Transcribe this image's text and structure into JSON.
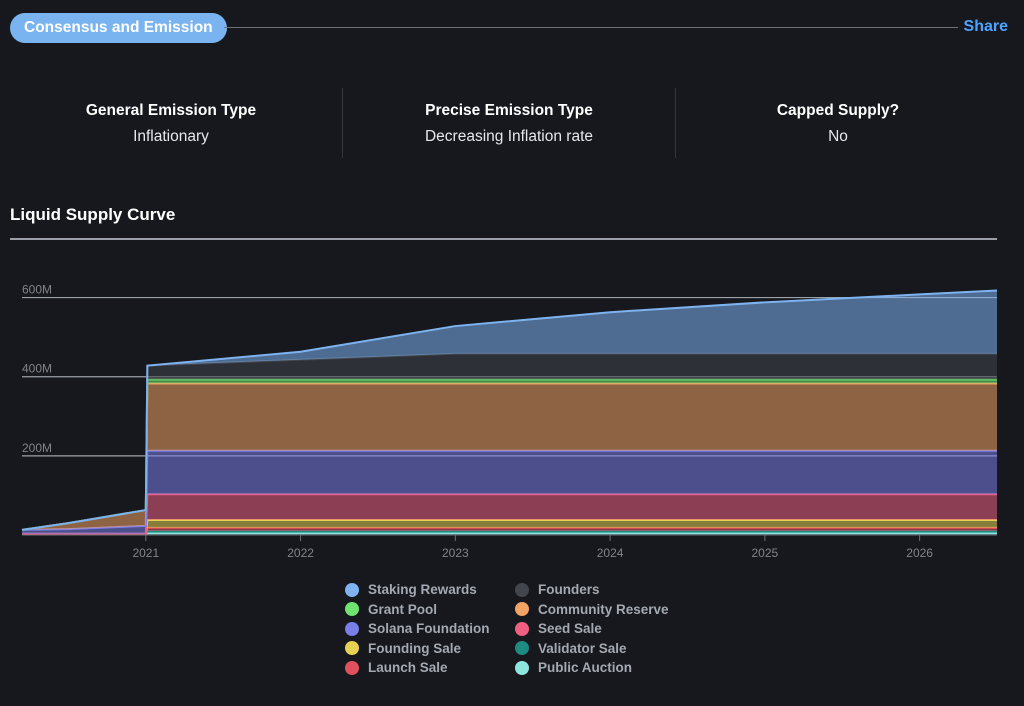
{
  "header": {
    "title": "Consensus and Emission",
    "share_label": "Share"
  },
  "stats": [
    {
      "label": "General Emission Type",
      "value": "Inflationary"
    },
    {
      "label": "Precise Emission Type",
      "value": "Decreasing Inflation rate"
    },
    {
      "label": "Capped Supply?",
      "value": "No"
    }
  ],
  "section": {
    "title": "Liquid Supply Curve"
  },
  "chart_data": {
    "type": "area",
    "stacked": true,
    "title": "Liquid Supply Curve",
    "xlabel": "",
    "ylabel": "",
    "x_ticks": [
      "2021",
      "2022",
      "2023",
      "2024",
      "2025",
      "2026"
    ],
    "y_ticks": [
      "200M",
      "400M",
      "600M"
    ],
    "ylim": [
      0,
      700
    ],
    "xlim": [
      2020.2,
      2026.5
    ],
    "grid": true,
    "legend_position": "bottom",
    "x": [
      2020.2,
      2020.5,
      2021.0,
      2021.01,
      2022.0,
      2023.0,
      2024.0,
      2025.0,
      2026.0,
      2026.5
    ],
    "series": [
      {
        "name": "Public Auction",
        "color": "#8fe4dd",
        "values": [
          3,
          3,
          3,
          5,
          5,
          5,
          5,
          5,
          5,
          5
        ]
      },
      {
        "name": "Validator Sale",
        "color": "#1f8a80",
        "values": [
          0,
          0,
          0,
          5,
          5,
          5,
          5,
          5,
          5,
          5
        ]
      },
      {
        "name": "Launch Sale",
        "color": "#e0505e",
        "values": [
          0,
          0,
          0,
          8,
          8,
          8,
          8,
          8,
          8,
          8
        ]
      },
      {
        "name": "Founding Sale",
        "color": "#e6d154",
        "values": [
          0,
          0,
          0,
          20,
          20,
          20,
          20,
          20,
          20,
          20
        ]
      },
      {
        "name": "Seed Sale",
        "color": "#ef5f82",
        "values": [
          0,
          0,
          0,
          65,
          65,
          65,
          65,
          65,
          65,
          65
        ]
      },
      {
        "name": "Solana Foundation",
        "color": "#7a7ee8",
        "values": [
          10,
          12,
          20,
          110,
          110,
          110,
          110,
          110,
          110,
          110
        ]
      },
      {
        "name": "Community Reserve",
        "color": "#f3a364",
        "values": [
          0,
          15,
          40,
          170,
          170,
          170,
          170,
          170,
          170,
          170
        ]
      },
      {
        "name": "Grant Pool",
        "color": "#6fe36f",
        "values": [
          0,
          0,
          0,
          10,
          10,
          10,
          10,
          10,
          10,
          10
        ]
      },
      {
        "name": "Founders",
        "color": "#42454c",
        "values": [
          0,
          0,
          0,
          35,
          50,
          65,
          65,
          65,
          65,
          65
        ]
      },
      {
        "name": "Staking Rewards",
        "color": "#7eb3f0",
        "values": [
          0,
          0,
          0,
          0,
          20,
          70,
          105,
          130,
          150,
          160
        ]
      }
    ],
    "legend_order": [
      "Staking Rewards",
      "Founders",
      "Grant Pool",
      "Community Reserve",
      "Solana Foundation",
      "Seed Sale",
      "Founding Sale",
      "Validator Sale",
      "Launch Sale",
      "Public Auction"
    ]
  }
}
